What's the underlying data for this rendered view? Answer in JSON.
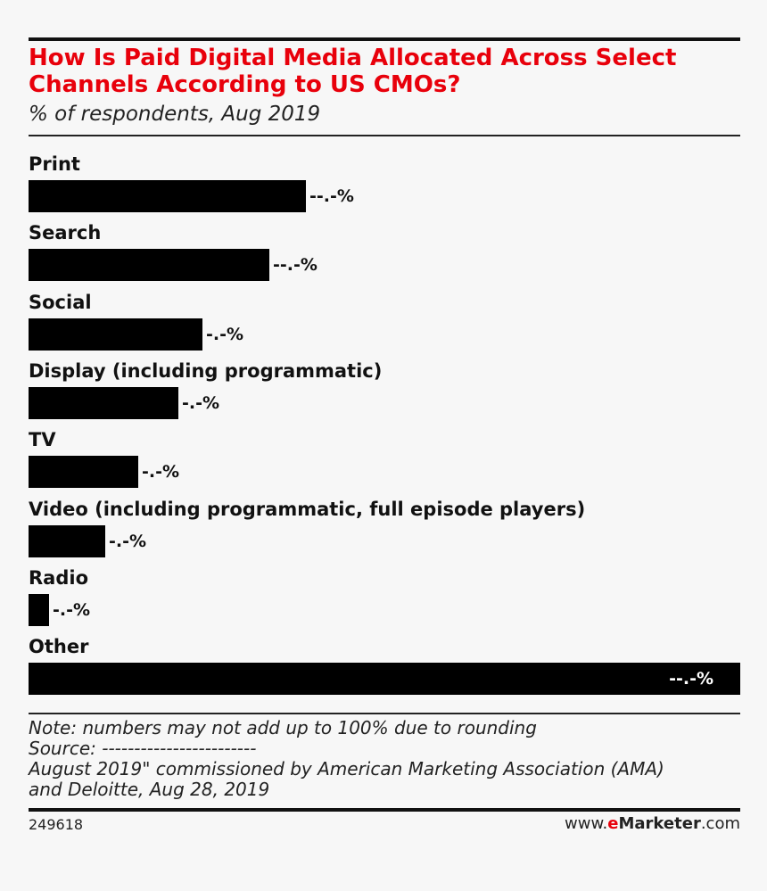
{
  "chart_data": {
    "type": "bar",
    "orientation": "horizontal",
    "title": "How Is Paid Digital Media Allocated Across Select Channels According to US CMOs?",
    "subtitle": "% of respondents, Aug 2019",
    "categories": [
      "Print",
      "Search",
      "Social",
      "Display (including programmatic)",
      "TV",
      "Video (including programmatic, full episode players)",
      "Radio",
      "Other"
    ],
    "values": [
      39.0,
      33.8,
      24.4,
      21.0,
      15.4,
      10.8,
      2.9,
      100
    ],
    "value_labels": [
      "--.-%",
      "--.-%",
      "-.-%",
      "-.-%",
      "-.-%",
      "-.-%",
      "-.-%",
      "--.-%"
    ],
    "xlim": [
      0,
      100
    ],
    "bar_color": "#000000",
    "grid": false,
    "legend": "none"
  },
  "title_color": "#e8000b",
  "footer": {
    "note": "Note: numbers may not add up to 100% due to rounding",
    "source": "Source: ------------------------",
    "source_line2": "August 2019\" commissioned by American Marketing Association (AMA)",
    "source_line3": "and Deloitte, Aug 28, 2019",
    "chart_id": "249618",
    "brand_prefix": "www.",
    "brand_e": "e",
    "brand_name": "Marketer",
    "brand_suffix": ".com"
  }
}
